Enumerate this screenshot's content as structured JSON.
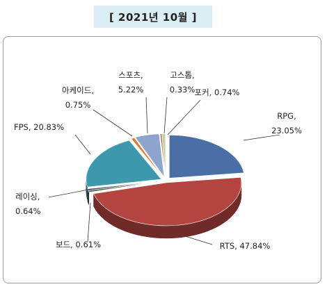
{
  "title": "[ 2021년 10월 ]",
  "chart_data": {
    "type": "pie",
    "title": "[ 2021년 10월 ]",
    "series": [
      {
        "name": "RPG",
        "value": 23.05,
        "label_line1": "RPG,",
        "label_line2": "23.05%",
        "color": "#4a6ea6"
      },
      {
        "name": "RTS",
        "value": 47.84,
        "label_line1": "RTS, 47.84%",
        "label_line2": "",
        "color": "#b4443f"
      },
      {
        "name": "보드",
        "value": 0.61,
        "label_line1": "보드, 0.61%",
        "label_line2": "",
        "color": "#3f5f2a"
      },
      {
        "name": "레이싱",
        "value": 0.64,
        "label_line1": "레이싱,",
        "label_line2": "0.64%",
        "color": "#5a4a7a"
      },
      {
        "name": "FPS",
        "value": 20.83,
        "label_line1": "FPS, 20.83%",
        "label_line2": "",
        "color": "#3c98ac"
      },
      {
        "name": "아케이드",
        "value": 0.75,
        "label_line1": "아케이드,",
        "label_line2": "0.75%",
        "color": "#e07b2c"
      },
      {
        "name": "스포츠",
        "value": 5.22,
        "label_line1": "스포츠,",
        "label_line2": "5.22%",
        "color": "#8fa3cf"
      },
      {
        "name": "고스톱",
        "value": 0.33,
        "label_line1": "고스톱,",
        "label_line2": "0.33%",
        "color": "#b06462"
      },
      {
        "name": "포커",
        "value": 0.74,
        "label_line1": "포커, 0.74%",
        "label_line2": "",
        "color": "#c3d19a"
      }
    ],
    "legend": "none",
    "style": "3d-exploded"
  }
}
